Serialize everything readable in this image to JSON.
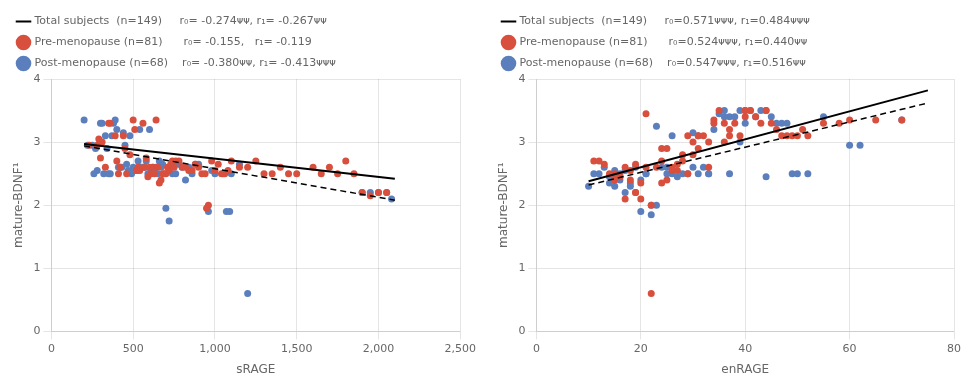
{
  "chart_data": [
    {
      "type": "scatter",
      "x_label": "sRAGE",
      "y_label": "mature-BDNF¹",
      "xlim": [
        0,
        2500
      ],
      "ylim": [
        0,
        4
      ],
      "xticks": [
        0,
        500,
        {
          "value": 1000,
          "label": "1,000"
        },
        {
          "value": 1500,
          "label": "1,500"
        },
        {
          "value": 2000,
          "label": "2,000"
        },
        {
          "value": 2500,
          "label": "2,500"
        }
      ],
      "yticks": [
        0,
        1,
        2,
        3,
        4
      ],
      "grid": true,
      "legend": "top",
      "series": [
        {
          "name": "Total subjects  (n=149)     r₀= -0.274ᴪᴪ, r₁= -0.267ᴪᴪ",
          "type": "line",
          "color": "#000000",
          "line_style": "solid",
          "x": [
            200,
            2100
          ],
          "values": [
            2.97,
            2.42
          ]
        },
        {
          "name": "Pre-menopause (n=81)      r₀= -0.155,   r₁= -0.119",
          "type": "scatter",
          "color": "#d94f3d",
          "marker": "circle",
          "x": [
            230,
            280,
            290,
            300,
            310,
            330,
            350,
            360,
            390,
            400,
            410,
            420,
            440,
            450,
            460,
            480,
            500,
            510,
            520,
            530,
            540,
            560,
            570,
            580,
            590,
            600,
            610,
            620,
            630,
            640,
            650,
            660,
            670,
            680,
            690,
            700,
            710,
            720,
            730,
            740,
            750,
            760,
            780,
            800,
            820,
            840,
            860,
            880,
            900,
            920,
            940,
            950,
            960,
            980,
            1000,
            1020,
            1040,
            1060,
            1080,
            1100,
            1150,
            1200,
            1250,
            1300,
            1350,
            1400,
            1450,
            1500,
            1600,
            1650,
            1700,
            1750,
            1800,
            1850,
            1900,
            1950,
            2000,
            2050
          ],
          "values": [
            2.95,
            2.95,
            3.05,
            2.75,
            3.0,
            2.6,
            3.3,
            3.3,
            3.1,
            2.7,
            2.5,
            2.6,
            3.1,
            2.9,
            2.5,
            2.8,
            3.35,
            3.2,
            2.55,
            2.6,
            2.55,
            3.3,
            2.6,
            2.75,
            2.45,
            2.6,
            2.5,
            2.6,
            2.5,
            3.35,
            2.6,
            2.35,
            2.4,
            2.5,
            2.5,
            2.5,
            2.6,
            2.55,
            2.65,
            2.7,
            2.6,
            2.7,
            2.7,
            2.6,
            2.6,
            2.55,
            2.55,
            2.65,
            2.6,
            2.5,
            2.5,
            1.95,
            2.0,
            2.7,
            2.55,
            2.65,
            2.5,
            2.5,
            2.55,
            2.7,
            2.6,
            2.6,
            2.7,
            2.5,
            2.5,
            2.6,
            2.5,
            2.5,
            2.6,
            2.5,
            2.6,
            2.5,
            2.7,
            2.5,
            2.2,
            2.15,
            2.2,
            2.2
          ]
        },
        {
          "name": "Post-menopause (n=68)    r₀= -0.380ᴪᴪ, r₁= -0.413ᴪᴪᴪ",
          "type": "scatter",
          "color": "#5b7fbd",
          "marker": "circle",
          "x": [
            200,
            220,
            250,
            260,
            270,
            280,
            300,
            310,
            320,
            330,
            340,
            350,
            360,
            370,
            380,
            390,
            400,
            410,
            420,
            430,
            440,
            450,
            460,
            470,
            480,
            490,
            500,
            510,
            520,
            530,
            540,
            550,
            560,
            570,
            580,
            590,
            600,
            610,
            620,
            630,
            640,
            650,
            660,
            670,
            680,
            700,
            720,
            740,
            760,
            780,
            800,
            820,
            840,
            860,
            880,
            900,
            950,
            960,
            980,
            1000,
            1050,
            1070,
            1090,
            1100,
            1150,
            1200,
            1900,
            1950,
            2000,
            2050,
            2080
          ],
          "values": [
            3.35,
            2.95,
            2.95,
            2.5,
            2.9,
            2.55,
            3.3,
            3.3,
            2.5,
            3.1,
            2.9,
            2.5,
            2.5,
            3.1,
            3.3,
            3.35,
            3.2,
            2.6,
            2.6,
            2.6,
            3.15,
            2.95,
            2.65,
            2.55,
            3.1,
            2.5,
            2.6,
            2.55,
            2.55,
            2.7,
            3.2,
            2.6,
            2.6,
            2.6,
            2.7,
            2.5,
            3.2,
            2.55,
            2.6,
            2.55,
            2.6,
            2.5,
            2.7,
            2.6,
            2.65,
            1.95,
            1.75,
            2.5,
            2.5,
            2.65,
            2.6,
            2.4,
            2.6,
            2.5,
            2.65,
            2.65,
            1.95,
            1.9,
            2.55,
            2.5,
            2.5,
            1.9,
            1.9,
            2.5,
            2.65,
            0.6,
            2.2,
            2.2,
            2.2,
            2.2,
            2.1
          ]
        },
        {
          "type": "line",
          "color": "#000000",
          "line_style": "dashed",
          "x": [
            200,
            2100
          ],
          "values": [
            2.94,
            2.08
          ]
        }
      ]
    },
    {
      "type": "scatter",
      "x_label": "enRAGE",
      "y_label": "mature-BDNF¹",
      "xlim": [
        0,
        80
      ],
      "ylim": [
        0,
        4
      ],
      "xticks": [
        0,
        20,
        40,
        60,
        80
      ],
      "yticks": [
        0,
        1,
        2,
        3,
        4
      ],
      "grid": true,
      "legend": "top",
      "series": [
        {
          "name": "Total subjects  (n=149)     r₀=0.571ᴪᴪᴪ, r₁=0.484ᴪᴪᴪ",
          "type": "line",
          "color": "#000000",
          "line_style": "solid",
          "x": [
            10,
            75
          ],
          "values": [
            2.38,
            3.82
          ]
        },
        {
          "name": "Pre-menopause (n=81)      r₀=0.524ᴪᴪᴪ, r₁=0.440ᴪᴪ",
          "type": "scatter",
          "color": "#d94f3d",
          "marker": "circle",
          "x": [
            11,
            12,
            13,
            14,
            15,
            15,
            16,
            16,
            17,
            17,
            18,
            18,
            19,
            19,
            19,
            20,
            20,
            21,
            21,
            22,
            22,
            23,
            24,
            24,
            24,
            25,
            25,
            26,
            26,
            27,
            27,
            28,
            28,
            29,
            29,
            30,
            30,
            31,
            31,
            32,
            33,
            33,
            34,
            34,
            35,
            36,
            36,
            37,
            37,
            38,
            39,
            40,
            40,
            41,
            42,
            43,
            44,
            45,
            46,
            47,
            48,
            49,
            50,
            51,
            52,
            55,
            58,
            60,
            65,
            70
          ],
          "values": [
            2.7,
            2.7,
            2.65,
            2.5,
            2.5,
            2.4,
            2.45,
            2.45,
            2.1,
            2.6,
            2.55,
            2.4,
            2.2,
            2.2,
            2.65,
            2.1,
            2.35,
            2.6,
            3.45,
            0.6,
            2.0,
            2.6,
            2.9,
            2.7,
            2.35,
            2.4,
            2.9,
            2.6,
            2.55,
            2.55,
            2.65,
            2.7,
            2.8,
            3.1,
            2.5,
            2.8,
            3.0,
            3.1,
            2.9,
            3.1,
            3.0,
            2.6,
            3.3,
            3.35,
            3.5,
            3.3,
            3.0,
            3.1,
            3.2,
            3.3,
            3.1,
            3.4,
            3.5,
            3.5,
            3.4,
            3.3,
            3.5,
            3.3,
            3.2,
            3.1,
            3.1,
            3.1,
            3.1,
            3.2,
            3.1,
            3.3,
            3.3,
            3.35,
            3.35,
            3.35
          ]
        },
        {
          "name": "Post-menopause (n=68)    r₀=0.547ᴪᴪᴪ, r₁=0.516ᴪᴪ",
          "type": "scatter",
          "color": "#5b7fbd",
          "marker": "circle",
          "x": [
            10,
            11,
            12,
            13,
            14,
            14,
            15,
            15,
            16,
            16,
            17,
            17,
            18,
            18,
            19,
            20,
            20,
            21,
            21,
            22,
            22,
            23,
            23,
            24,
            25,
            25,
            26,
            26,
            27,
            28,
            29,
            30,
            30,
            31,
            31,
            32,
            33,
            33,
            34,
            35,
            36,
            36,
            37,
            37,
            38,
            39,
            39,
            40,
            40,
            41,
            42,
            43,
            44,
            44,
            45,
            46,
            47,
            48,
            49,
            50,
            52,
            55,
            60,
            62,
            70
          ],
          "values": [
            2.3,
            2.5,
            2.5,
            2.6,
            2.45,
            2.35,
            2.55,
            2.3,
            2.5,
            2.4,
            2.2,
            2.55,
            2.3,
            2.35,
            2.6,
            1.9,
            2.4,
            2.5,
            2.5,
            2.0,
            1.85,
            3.25,
            2.0,
            2.6,
            2.5,
            2.6,
            3.1,
            2.5,
            2.45,
            2.5,
            2.5,
            2.6,
            3.15,
            3.1,
            2.5,
            2.6,
            2.5,
            2.5,
            3.2,
            3.45,
            3.5,
            3.4,
            3.4,
            2.5,
            3.4,
            3.5,
            3.0,
            3.3,
            3.5,
            3.5,
            3.4,
            3.5,
            3.5,
            2.45,
            3.4,
            3.3,
            3.3,
            3.3,
            2.5,
            2.5,
            2.5,
            3.4,
            2.95,
            2.95,
            3.35
          ]
        },
        {
          "type": "line",
          "color": "#000000",
          "line_style": "dashed",
          "x": [
            10,
            75
          ],
          "values": [
            2.32,
            3.62
          ]
        }
      ]
    }
  ]
}
